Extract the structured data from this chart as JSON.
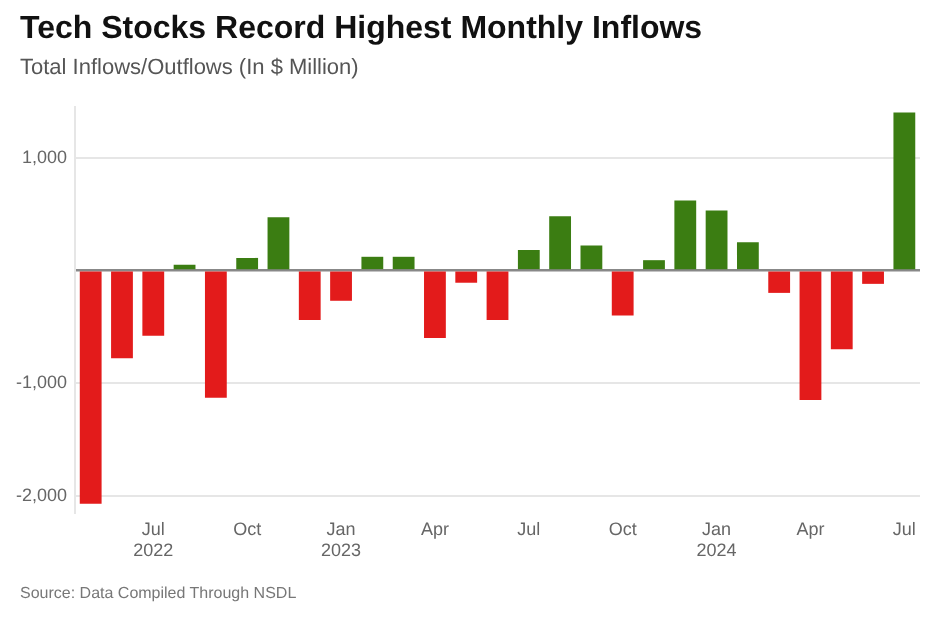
{
  "chart_data": {
    "type": "bar",
    "title": "Tech Stocks Record Highest Monthly Inflows",
    "subtitle": "Total Inflows/Outflows (In $ Million)",
    "categories": [
      null,
      null,
      "Jul 2022",
      null,
      null,
      "Oct",
      null,
      null,
      "Jan 2023",
      null,
      null,
      "Apr",
      null,
      null,
      "Jul",
      null,
      null,
      "Oct",
      null,
      null,
      "Jan 2024",
      null,
      null,
      "Apr",
      null,
      null,
      "Jul"
    ],
    "values": [
      -2070,
      -780,
      -580,
      50,
      -1130,
      110,
      470,
      -440,
      -270,
      120,
      120,
      -600,
      -110,
      -440,
      180,
      480,
      220,
      -400,
      90,
      620,
      530,
      250,
      -200,
      -1150,
      -700,
      -120,
      1400
    ],
    "colors": [
      "#e31b1b",
      "#e31b1b",
      "#e31b1b",
      "#3b7d12",
      "#e31b1b",
      "#3b7d12",
      "#3b7d12",
      "#e31b1b",
      "#e31b1b",
      "#3b7d12",
      "#3b7d12",
      "#e31b1b",
      "#e31b1b",
      "#e31b1b",
      "#3b7d12",
      "#3b7d12",
      "#3b7d12",
      "#e31b1b",
      "#3b7d12",
      "#3b7d12",
      "#3b7d12",
      "#3b7d12",
      "#e31b1b",
      "#e31b1b",
      "#e31b1b",
      "#e31b1b",
      "#3b7d12"
    ],
    "ylim": [
      -2150,
      1450
    ],
    "yticks": [
      {
        "value": -2000,
        "label": "-2,000"
      },
      {
        "value": -1000,
        "label": "-1,000"
      },
      {
        "value": 0,
        "label": null
      },
      {
        "value": 1000,
        "label": "1,000"
      }
    ],
    "grid": "y",
    "annotations": [
      "Source: Data Compiled Through NSDL"
    ]
  }
}
